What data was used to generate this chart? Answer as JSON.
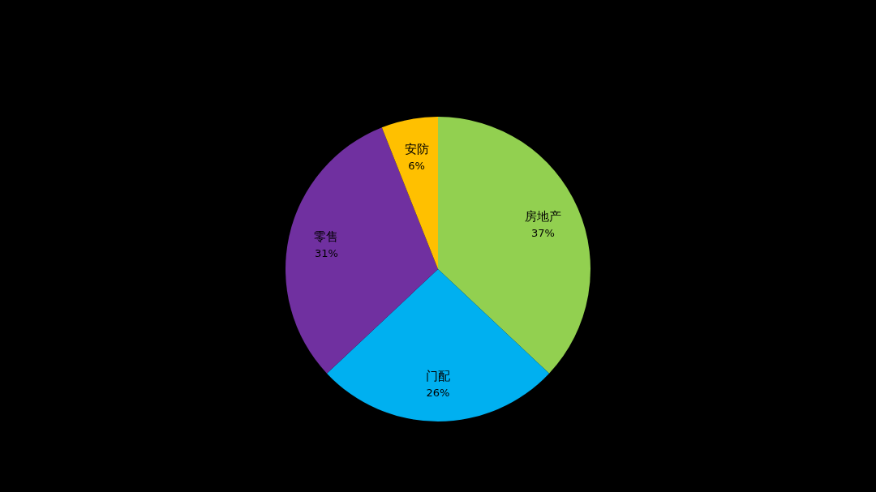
{
  "chart_data": {
    "type": "pie",
    "categories": [
      "房地产",
      "门配",
      "零售",
      "安防"
    ],
    "values": [
      37,
      26,
      31,
      6
    ],
    "colors": [
      "#92d050",
      "#00b0f0",
      "#7030a0",
      "#ffc000"
    ],
    "value_labels": [
      "37%",
      "26%",
      "31%",
      "6%"
    ]
  }
}
